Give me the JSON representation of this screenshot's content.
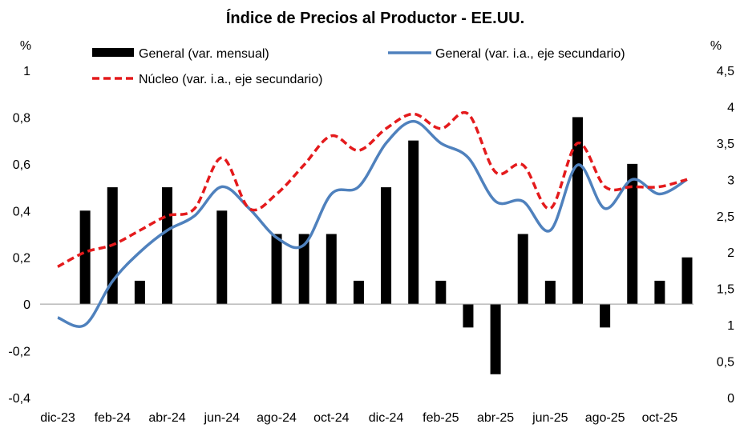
{
  "chart_data": {
    "type": "bar+line",
    "title": "Índice de Precios al Productor - EE.UU.",
    "y_left_unit": "%",
    "y_right_unit": "%",
    "y_left_range": [
      -0.4,
      1.0
    ],
    "y_right_range": [
      0,
      4.5
    ],
    "y_left_ticks": [
      "1",
      "0,8",
      "0,6",
      "0,4",
      "0,2",
      "0",
      "-0,2",
      "-0,4"
    ],
    "y_right_ticks": [
      "4,5",
      "4",
      "3,5",
      "3",
      "2,5",
      "2",
      "1,5",
      "1",
      "0,5",
      "0"
    ],
    "categories": [
      "dic-23",
      "ene-24",
      "feb-24",
      "mar-24",
      "abr-24",
      "may-24",
      "jun-24",
      "jul-24",
      "ago-24",
      "sep-24",
      "oct-24",
      "nov-24",
      "dic-24",
      "ene-25",
      "feb-25",
      "mar-25",
      "abr-25",
      "may-25",
      "jun-25",
      "jul-25",
      "ago-25",
      "sep-25",
      "oct-25",
      "nov-25"
    ],
    "x_tick_labels": [
      "dic-23",
      "feb-24",
      "abr-24",
      "jun-24",
      "ago-24",
      "oct-24",
      "dic-24",
      "feb-25",
      "abr-25",
      "jun-25",
      "ago-25",
      "oct-25"
    ],
    "series": [
      {
        "name": "General (var. mensual)",
        "type": "bar",
        "axis": "left",
        "color": "#000000",
        "values": [
          null,
          0.4,
          0.5,
          0.1,
          0.5,
          null,
          0.4,
          null,
          0.3,
          0.3,
          0.3,
          0.1,
          0.5,
          0.7,
          0.1,
          -0.1,
          -0.3,
          0.3,
          0.1,
          0.8,
          -0.1,
          0.6,
          0.1,
          0.2
        ]
      },
      {
        "name": "General (var. i.a., eje secundario)",
        "type": "line",
        "axis": "right",
        "color": "#4f81bd",
        "values": [
          1.1,
          1.0,
          1.6,
          2.0,
          2.3,
          2.5,
          2.9,
          2.6,
          2.2,
          2.1,
          2.8,
          2.9,
          3.5,
          3.8,
          3.5,
          3.3,
          2.7,
          2.7,
          2.3,
          3.2,
          2.6,
          3.0,
          2.8,
          3.0
        ]
      },
      {
        "name": "Núcleo (var. i.a., eje secundario)",
        "type": "line",
        "axis": "right",
        "color": "#e41a1c",
        "dashed": true,
        "values": [
          1.8,
          2.0,
          2.1,
          2.3,
          2.5,
          2.6,
          3.3,
          2.6,
          2.8,
          3.2,
          3.6,
          3.4,
          3.7,
          3.9,
          3.7,
          3.9,
          3.1,
          3.2,
          2.6,
          3.5,
          2.9,
          2.9,
          2.9,
          3.0
        ]
      }
    ],
    "legend_position": "top"
  }
}
